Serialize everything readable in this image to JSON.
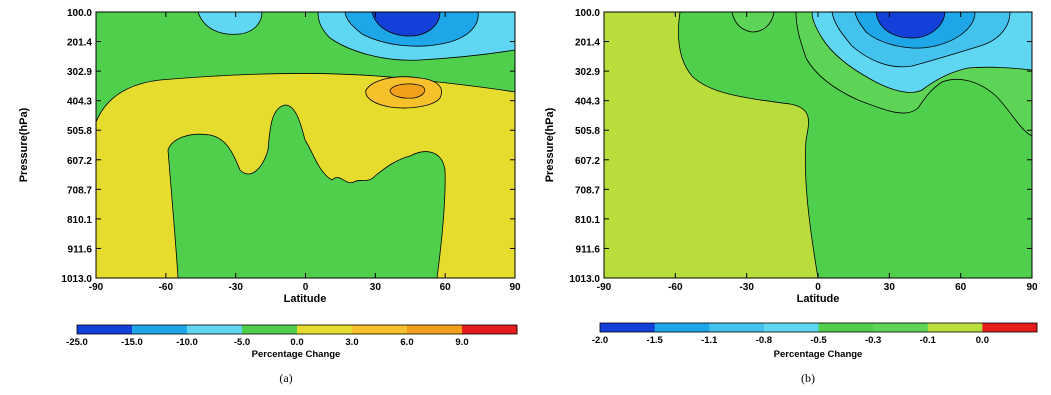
{
  "chart_data": [
    {
      "type": "heatmap",
      "panel_label": "(a)",
      "xlabel": "Latitude",
      "ylabel": "Pressure(hPa)",
      "x_ticks": [
        "-90",
        "-60",
        "-30",
        "0",
        "30",
        "60",
        "90"
      ],
      "y_ticks": [
        "100.0",
        "201.4",
        "302.9",
        "404.3",
        "505.8",
        "607.2",
        "708.7",
        "810.1",
        "911.6",
        "1013.0"
      ],
      "xlim": [
        -90,
        90
      ],
      "ylim": [
        100.0,
        1013.0
      ],
      "colorbar": {
        "label": "Percentage Change",
        "tick_labels": [
          "-25.0",
          "-15.0",
          "-10.0",
          "-5.0",
          "0.0",
          "3.0",
          "6.0",
          "9.0"
        ],
        "colors": [
          "#1240d8",
          "#1ea7e8",
          "#5fd7f2",
          "#4fcf4c",
          "#e6dc2e",
          "#f7c12c",
          "#f29f1c",
          "#e61c1c"
        ]
      }
    },
    {
      "type": "heatmap",
      "panel_label": "(b)",
      "xlabel": "Latitude",
      "ylabel": "Pressure(hPa)",
      "x_ticks": [
        "-90",
        "-60",
        "-30",
        "0",
        "30",
        "60",
        "90"
      ],
      "y_ticks": [
        "100.0",
        "201.4",
        "302.9",
        "404.3",
        "505.8",
        "607.2",
        "708.7",
        "810.1",
        "911.6",
        "1013.0"
      ],
      "xlim": [
        -90,
        90
      ],
      "ylim": [
        100.0,
        1013.0
      ],
      "colorbar": {
        "label": "Percentage Change",
        "tick_labels": [
          "-2.0",
          "-1.5",
          "-1.1",
          "-0.8",
          "-0.5",
          "-0.3",
          "-0.1",
          "0.0"
        ],
        "colors": [
          "#1240d8",
          "#1ea7e8",
          "#44c2ee",
          "#5fd7f2",
          "#4fcf4c",
          "#5dd455",
          "#b9de3c",
          "#e61c1c"
        ]
      }
    }
  ]
}
